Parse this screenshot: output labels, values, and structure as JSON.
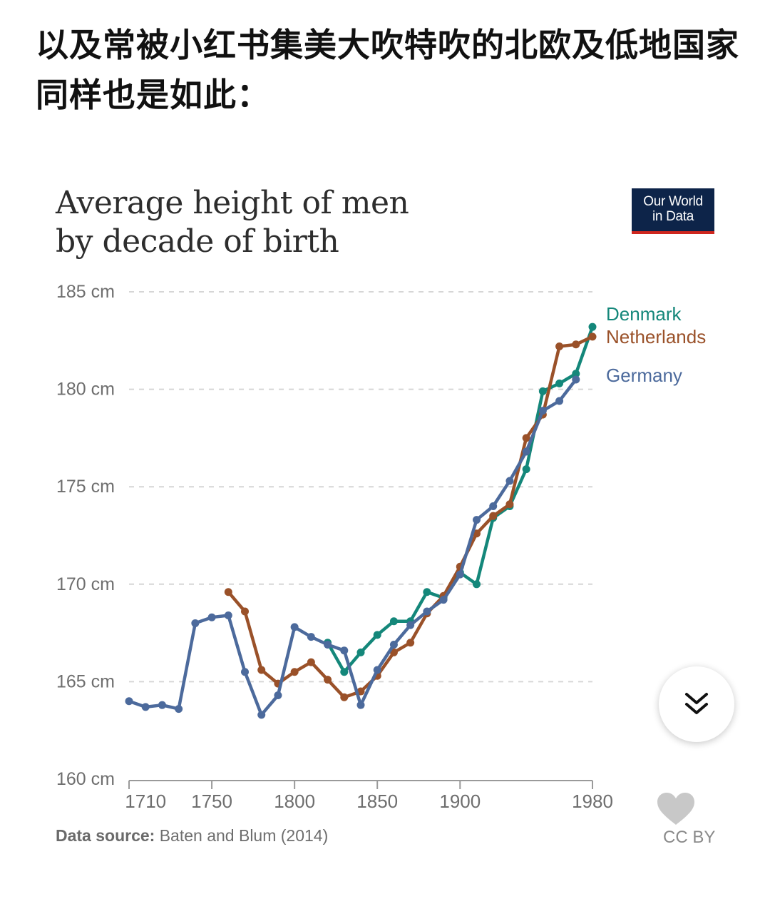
{
  "post": {
    "text": "以及常被小红书集美大吹特吹的北欧及低地国家同样也是如此："
  },
  "logo": {
    "line1": "Our World",
    "line2": "in Data"
  },
  "source": {
    "label": "Data source:",
    "value": "Baten and Blum (2014)"
  },
  "license": {
    "label": "CC BY"
  },
  "colors": {
    "denmark": "#14877a",
    "netherlands": "#9a5129",
    "germany": "#4c6a9c",
    "grid": "#d6d6d6",
    "axis_text": "#6e6e6e"
  },
  "icons": {
    "scroll": "chevron-double-down-icon",
    "heart": "heart-icon"
  },
  "chart_data": {
    "type": "line",
    "title": "Average height of men by decade of birth",
    "title_lines": [
      "Average height of men",
      "by decade of birth"
    ],
    "ylim": [
      160,
      185
    ],
    "y_ticks": [
      160,
      165,
      170,
      175,
      180,
      185
    ],
    "y_tick_labels": [
      "160 cm",
      "165 cm",
      "170 cm",
      "175 cm",
      "180 cm",
      "185 cm"
    ],
    "xlim": [
      1700,
      1980
    ],
    "x_ticks": [
      1710,
      1750,
      1800,
      1850,
      1900,
      1980
    ],
    "x_tick_labels": [
      "1710",
      "1750",
      "1800",
      "1850",
      "1900",
      "1980"
    ],
    "grid": "horizontal-dashed",
    "legend": "right, at line ends",
    "series": [
      {
        "name": "Denmark",
        "color": "#14877a",
        "points": [
          [
            1820,
            167.0
          ],
          [
            1830,
            165.5
          ],
          [
            1840,
            166.5
          ],
          [
            1850,
            167.4
          ],
          [
            1860,
            168.1
          ],
          [
            1870,
            168.1
          ],
          [
            1880,
            169.6
          ],
          [
            1890,
            169.3
          ],
          [
            1900,
            170.6
          ],
          [
            1910,
            170.0
          ],
          [
            1920,
            173.4
          ],
          [
            1930,
            174.0
          ],
          [
            1940,
            175.9
          ],
          [
            1950,
            179.9
          ],
          [
            1960,
            180.3
          ],
          [
            1970,
            180.8
          ],
          [
            1980,
            183.2
          ]
        ]
      },
      {
        "name": "Netherlands",
        "color": "#9a5129",
        "points": [
          [
            1760,
            169.6
          ],
          [
            1770,
            168.6
          ],
          [
            1780,
            165.6
          ],
          [
            1790,
            164.9
          ],
          [
            1800,
            165.5
          ],
          [
            1810,
            166.0
          ],
          [
            1820,
            165.1
          ],
          [
            1830,
            164.2
          ],
          [
            1840,
            164.5
          ],
          [
            1850,
            165.3
          ],
          [
            1860,
            166.5
          ],
          [
            1870,
            167.0
          ],
          [
            1880,
            168.5
          ],
          [
            1890,
            169.4
          ],
          [
            1900,
            170.9
          ],
          [
            1910,
            172.6
          ],
          [
            1920,
            173.5
          ],
          [
            1930,
            174.1
          ],
          [
            1940,
            177.5
          ],
          [
            1950,
            178.7
          ],
          [
            1960,
            182.2
          ],
          [
            1970,
            182.3
          ],
          [
            1980,
            182.7
          ]
        ]
      },
      {
        "name": "Germany",
        "color": "#4c6a9c",
        "points": [
          [
            1700,
            164.0
          ],
          [
            1710,
            163.7
          ],
          [
            1720,
            163.8
          ],
          [
            1730,
            163.6
          ],
          [
            1740,
            168.0
          ],
          [
            1750,
            168.3
          ],
          [
            1760,
            168.4
          ],
          [
            1770,
            165.5
          ],
          [
            1780,
            163.3
          ],
          [
            1790,
            164.3
          ],
          [
            1800,
            167.8
          ],
          [
            1810,
            167.3
          ],
          [
            1820,
            166.9
          ],
          [
            1830,
            166.6
          ],
          [
            1840,
            163.8
          ],
          [
            1850,
            165.6
          ],
          [
            1860,
            166.9
          ],
          [
            1870,
            167.9
          ],
          [
            1880,
            168.6
          ],
          [
            1890,
            169.2
          ],
          [
            1900,
            170.5
          ],
          [
            1910,
            173.3
          ],
          [
            1920,
            174.0
          ],
          [
            1930,
            175.3
          ],
          [
            1940,
            176.8
          ],
          [
            1950,
            178.9
          ],
          [
            1960,
            179.4
          ],
          [
            1970,
            180.5
          ]
        ]
      }
    ]
  }
}
